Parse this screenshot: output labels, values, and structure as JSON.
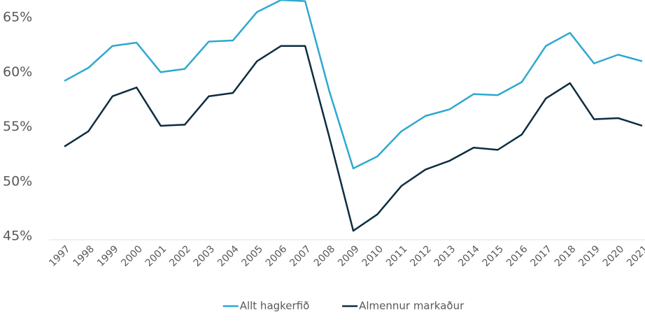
{
  "chart_data": {
    "type": "line",
    "x": [
      "1997",
      "1998",
      "1999",
      "2000",
      "2001",
      "2002",
      "2003",
      "2004",
      "2005",
      "2006",
      "2007",
      "2008",
      "2009",
      "2010",
      "2011",
      "2012",
      "2013",
      "2014",
      "2015",
      "2016",
      "2017",
      "2018",
      "2019",
      "2020",
      "2021"
    ],
    "series": [
      {
        "name": "Allt hagkerfið",
        "color": "#2ea8d0",
        "values": [
          59.2,
          60.4,
          62.4,
          62.7,
          60.0,
          60.3,
          62.8,
          62.9,
          65.5,
          66.6,
          66.5,
          58.3,
          51.2,
          52.3,
          54.6,
          56.0,
          56.6,
          58.0,
          57.9,
          59.1,
          62.4,
          63.6,
          60.8,
          61.6,
          61.0
        ]
      },
      {
        "name": "Almennur markaður",
        "color": "#0d2d40",
        "values": [
          53.2,
          54.6,
          57.8,
          58.6,
          55.1,
          55.2,
          57.8,
          58.1,
          61.0,
          62.4,
          62.4,
          54.1,
          45.5,
          47.0,
          49.6,
          51.1,
          51.9,
          53.1,
          52.9,
          54.3,
          57.6,
          59.0,
          55.7,
          55.8,
          55.1
        ]
      }
    ],
    "ylim": [
      45,
      66.6
    ],
    "yticks": [
      {
        "value": 45,
        "label": "45%"
      },
      {
        "value": 50,
        "label": "50%"
      },
      {
        "value": 55,
        "label": "55%"
      },
      {
        "value": 60,
        "label": "60%"
      },
      {
        "value": 65,
        "label": "65%"
      }
    ],
    "grid": false,
    "legend": "bottom"
  }
}
